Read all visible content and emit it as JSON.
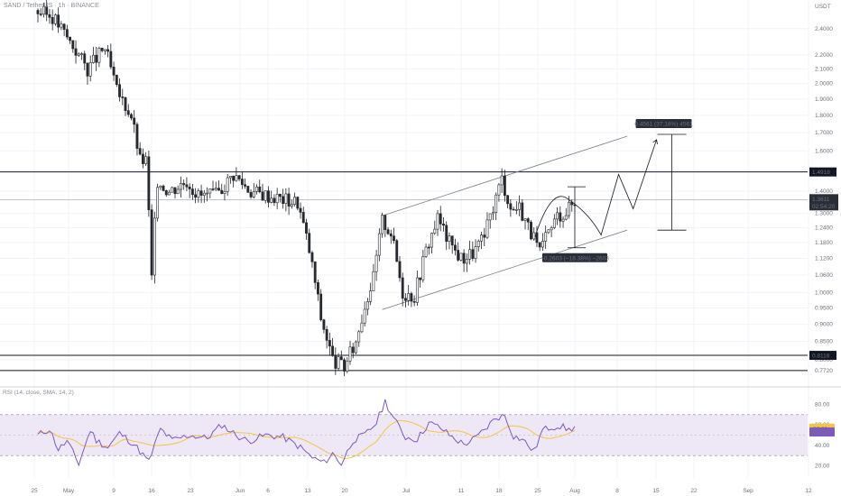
{
  "header": {
    "symbol": "SAND / TetherUS",
    "sep": "·",
    "tf": "1h",
    "exchange": "BINANCE"
  },
  "currency": "USDT",
  "rsi_header": "RSI (14, close, SMA, 14, 2)",
  "colors": {
    "up": "#26a69a",
    "down": "#26292f",
    "wick": "#222",
    "rsi": "#7e57c2",
    "rsi_ma": "#f5c542",
    "band": "#ede7f6",
    "label_bg": "#2a2e39",
    "grid": "#f0f3fa"
  },
  "chart_data": [
    {
      "type": "candlestick",
      "y_scale": "log",
      "ylim": [
        0.74,
        2.6
      ],
      "y_ticks": [
        "2.4000",
        "2.2000",
        "2.1000",
        "2.0000",
        "1.9000",
        "1.8000",
        "1.7000",
        "1.6000",
        "1.5000",
        "1.4000",
        "1.3000",
        "1.2400",
        "1.1800",
        "1.1200",
        "1.0600",
        "1.0000",
        "0.9500",
        "0.9000",
        "0.8500",
        "0.8000",
        "0.7720"
      ],
      "x_ticks": [
        "25",
        "May",
        "9",
        "16",
        "23",
        "Jun",
        "6",
        "13",
        "20",
        "Jul",
        "11",
        "18",
        "25",
        "Aug",
        "8",
        "15",
        "22",
        "Sep",
        "12"
      ],
      "price_path": [
        [
          0,
          2.55
        ],
        [
          6,
          2.5
        ],
        [
          12,
          2.3
        ],
        [
          18,
          2.1
        ],
        [
          24,
          2.25
        ],
        [
          28,
          1.95
        ],
        [
          33,
          1.8
        ],
        [
          36,
          1.55
        ],
        [
          38,
          1.55
        ],
        [
          40,
          1.05
        ],
        [
          42,
          1.45
        ],
        [
          46,
          1.4
        ],
        [
          52,
          1.45
        ],
        [
          56,
          1.38
        ],
        [
          62,
          1.38
        ],
        [
          68,
          1.48
        ],
        [
          74,
          1.4
        ],
        [
          80,
          1.38
        ],
        [
          86,
          1.36
        ],
        [
          90,
          1.35
        ],
        [
          94,
          1.15
        ],
        [
          98,
          0.92
        ],
        [
          102,
          0.8
        ],
        [
          106,
          0.78
        ],
        [
          110,
          0.85
        ],
        [
          113,
          0.96
        ],
        [
          116,
          1.05
        ],
        [
          119,
          1.27
        ],
        [
          122,
          1.22
        ],
        [
          126,
          1.0
        ],
        [
          130,
          0.99
        ],
        [
          134,
          1.15
        ],
        [
          138,
          1.28
        ],
        [
          142,
          1.18
        ],
        [
          146,
          1.12
        ],
        [
          150,
          1.14
        ],
        [
          154,
          1.2
        ],
        [
          157,
          1.33
        ],
        [
          160,
          1.46
        ],
        [
          163,
          1.32
        ],
        [
          166,
          1.33
        ],
        [
          170,
          1.22
        ],
        [
          173,
          1.14
        ],
        [
          176,
          1.22
        ],
        [
          179,
          1.29
        ],
        [
          182,
          1.31
        ],
        [
          184,
          1.34
        ]
      ],
      "horizontal_lines": [
        {
          "price": 1.4918,
          "label": "1.4918"
        },
        {
          "price": 0.8118,
          "label": "0.8118"
        }
      ],
      "current_price": {
        "price": "1.3611",
        "countdown": "02:54:20"
      },
      "measurements": [
        {
          "text": "0.4561 (37.18%) 4561"
        },
        {
          "text": "−0.2603 (−18.38%) −2603"
        }
      ]
    },
    {
      "type": "line",
      "name": "RSI",
      "ylim": [
        10,
        90
      ],
      "y_ticks": [
        "80.00",
        "60.00",
        "40.00",
        "20.00"
      ],
      "band": [
        30,
        70
      ],
      "midline": 50,
      "rsi_path": [
        [
          0,
          50
        ],
        [
          4,
          56
        ],
        [
          7,
          36
        ],
        [
          10,
          44
        ],
        [
          14,
          22
        ],
        [
          18,
          55
        ],
        [
          20,
          45
        ],
        [
          24,
          38
        ],
        [
          28,
          52
        ],
        [
          33,
          41
        ],
        [
          38,
          24
        ],
        [
          42,
          56
        ],
        [
          46,
          45
        ],
        [
          52,
          50
        ],
        [
          58,
          47
        ],
        [
          63,
          60
        ],
        [
          68,
          50
        ],
        [
          72,
          44
        ],
        [
          78,
          50
        ],
        [
          84,
          48
        ],
        [
          90,
          38
        ],
        [
          94,
          28
        ],
        [
          98,
          23
        ],
        [
          101,
          32
        ],
        [
          104,
          22
        ],
        [
          108,
          45
        ],
        [
          112,
          50
        ],
        [
          116,
          62
        ],
        [
          119,
          83
        ],
        [
          122,
          66
        ],
        [
          126,
          48
        ],
        [
          130,
          46
        ],
        [
          134,
          62
        ],
        [
          138,
          57
        ],
        [
          142,
          48
        ],
        [
          146,
          41
        ],
        [
          150,
          47
        ],
        [
          154,
          58
        ],
        [
          157,
          67
        ],
        [
          160,
          69
        ],
        [
          163,
          49
        ],
        [
          166,
          46
        ],
        [
          170,
          34
        ],
        [
          173,
          55
        ],
        [
          176,
          58
        ],
        [
          179,
          59
        ],
        [
          182,
          55
        ],
        [
          184,
          58
        ]
      ],
      "value_labels": [
        "56.81",
        "55.67"
      ]
    }
  ]
}
